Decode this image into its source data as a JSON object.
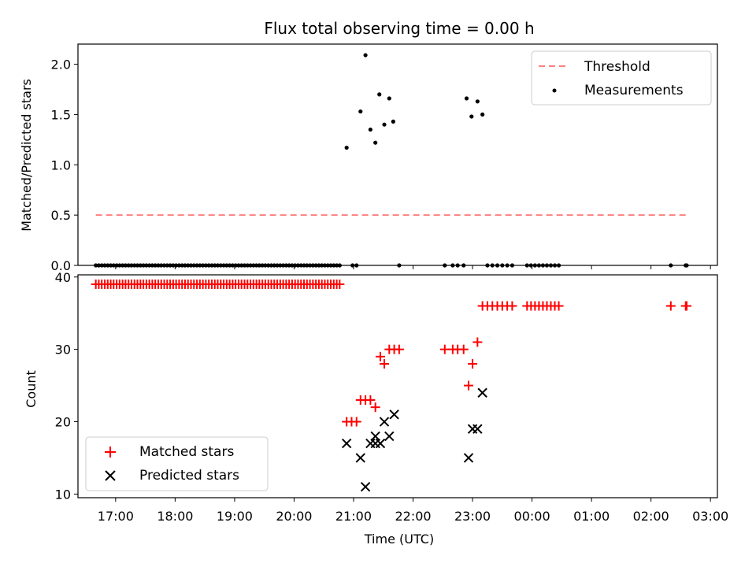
{
  "chart_data": [
    {
      "type": "scatter",
      "title": "Flux total observing time = 0.00 h",
      "xlabel": "",
      "ylabel": "Matched/Predicted stars",
      "xlim": [
        "16:22",
        "03:07"
      ],
      "ylim": [
        0,
        2.2
      ],
      "yticks": [
        0.0,
        0.5,
        1.0,
        1.5,
        2.0
      ],
      "ytick_labels": [
        "0.0",
        "0.5",
        "1.0",
        "1.5",
        "2.0"
      ],
      "legend_position": "upper right",
      "threshold": {
        "name": "Threshold",
        "value": 0.5,
        "x_start": "16:40",
        "x_end": "02:35",
        "color": "#ff8080"
      },
      "series": [
        {
          "name": "Measurements",
          "color": "#000000",
          "marker": "dot",
          "points": [
            [
              "16:40",
              0
            ],
            [
              "16:43",
              0
            ],
            [
              "16:46",
              0
            ],
            [
              "16:49",
              0
            ],
            [
              "16:52",
              0
            ],
            [
              "16:55",
              0
            ],
            [
              "16:58",
              0
            ],
            [
              "17:01",
              0
            ],
            [
              "17:04",
              0
            ],
            [
              "17:07",
              0
            ],
            [
              "17:10",
              0
            ],
            [
              "17:13",
              0
            ],
            [
              "17:16",
              0
            ],
            [
              "17:19",
              0
            ],
            [
              "17:22",
              0
            ],
            [
              "17:25",
              0
            ],
            [
              "17:28",
              0
            ],
            [
              "17:31",
              0
            ],
            [
              "17:34",
              0
            ],
            [
              "17:37",
              0
            ],
            [
              "17:40",
              0
            ],
            [
              "17:43",
              0
            ],
            [
              "17:46",
              0
            ],
            [
              "17:49",
              0
            ],
            [
              "17:52",
              0
            ],
            [
              "17:55",
              0
            ],
            [
              "17:58",
              0
            ],
            [
              "18:01",
              0
            ],
            [
              "18:04",
              0
            ],
            [
              "18:07",
              0
            ],
            [
              "18:10",
              0
            ],
            [
              "18:13",
              0
            ],
            [
              "18:16",
              0
            ],
            [
              "18:19",
              0
            ],
            [
              "18:22",
              0
            ],
            [
              "18:25",
              0
            ],
            [
              "18:28",
              0
            ],
            [
              "18:31",
              0
            ],
            [
              "18:34",
              0
            ],
            [
              "18:37",
              0
            ],
            [
              "18:40",
              0
            ],
            [
              "18:43",
              0
            ],
            [
              "18:46",
              0
            ],
            [
              "18:49",
              0
            ],
            [
              "18:52",
              0
            ],
            [
              "18:55",
              0
            ],
            [
              "18:58",
              0
            ],
            [
              "19:01",
              0
            ],
            [
              "19:04",
              0
            ],
            [
              "19:07",
              0
            ],
            [
              "19:10",
              0
            ],
            [
              "19:13",
              0
            ],
            [
              "19:16",
              0
            ],
            [
              "19:19",
              0
            ],
            [
              "19:22",
              0
            ],
            [
              "19:25",
              0
            ],
            [
              "19:28",
              0
            ],
            [
              "19:31",
              0
            ],
            [
              "19:34",
              0
            ],
            [
              "19:37",
              0
            ],
            [
              "19:40",
              0
            ],
            [
              "19:43",
              0
            ],
            [
              "19:46",
              0
            ],
            [
              "19:49",
              0
            ],
            [
              "19:52",
              0
            ],
            [
              "19:55",
              0
            ],
            [
              "19:58",
              0
            ],
            [
              "20:01",
              0
            ],
            [
              "20:04",
              0
            ],
            [
              "20:07",
              0
            ],
            [
              "20:10",
              0
            ],
            [
              "20:13",
              0
            ],
            [
              "20:16",
              0
            ],
            [
              "20:19",
              0
            ],
            [
              "20:22",
              0
            ],
            [
              "20:25",
              0
            ],
            [
              "20:28",
              0
            ],
            [
              "20:31",
              0
            ],
            [
              "20:34",
              0
            ],
            [
              "20:37",
              0
            ],
            [
              "20:40",
              0
            ],
            [
              "20:43",
              0
            ],
            [
              "20:46",
              0
            ],
            [
              "20:53",
              1.17
            ],
            [
              "20:59",
              0
            ],
            [
              "21:03",
              0
            ],
            [
              "21:07",
              1.53
            ],
            [
              "21:12",
              2.09
            ],
            [
              "21:17",
              1.35
            ],
            [
              "21:22",
              1.22
            ],
            [
              "21:26",
              1.7
            ],
            [
              "21:31",
              1.4
            ],
            [
              "21:36",
              1.66
            ],
            [
              "21:40",
              1.43
            ],
            [
              "21:46",
              0
            ],
            [
              "22:32",
              0
            ],
            [
              "22:40",
              0
            ],
            [
              "22:45",
              0
            ],
            [
              "22:51",
              0
            ],
            [
              "22:54",
              1.66
            ],
            [
              "22:59",
              1.48
            ],
            [
              "23:05",
              1.63
            ],
            [
              "23:10",
              1.5
            ],
            [
              "23:15",
              0
            ],
            [
              "23:20",
              0
            ],
            [
              "23:25",
              0
            ],
            [
              "23:30",
              0
            ],
            [
              "23:35",
              0
            ],
            [
              "23:40",
              0
            ],
            [
              "23:55",
              0
            ],
            [
              "23:59",
              0
            ],
            [
              "00:03",
              0
            ],
            [
              "00:07",
              0
            ],
            [
              "00:11",
              0
            ],
            [
              "00:15",
              0
            ],
            [
              "00:19",
              0
            ],
            [
              "00:23",
              0
            ],
            [
              "00:27",
              0
            ],
            [
              "02:20",
              0
            ],
            [
              "02:35",
              0
            ],
            [
              "02:36",
              0
            ]
          ]
        }
      ]
    },
    {
      "type": "scatter",
      "title": "",
      "xlabel": "Time (UTC)",
      "ylabel": "Count",
      "xlim": [
        "16:22",
        "03:07"
      ],
      "ylim": [
        9.5,
        40.3
      ],
      "yticks": [
        10,
        20,
        30,
        40
      ],
      "ytick_labels": [
        "10",
        "20",
        "30",
        "40"
      ],
      "xticks": [
        "17:00",
        "18:00",
        "19:00",
        "20:00",
        "21:00",
        "22:00",
        "23:00",
        "00:00",
        "01:00",
        "02:00",
        "03:00"
      ],
      "xtick_labels": [
        "17:00",
        "18:00",
        "19:00",
        "20:00",
        "21:00",
        "22:00",
        "23:00",
        "00:00",
        "01:00",
        "02:00",
        "03:00"
      ],
      "legend_position": "lower left",
      "series": [
        {
          "name": "Matched stars",
          "color": "#ff0000",
          "marker": "plus",
          "points": [
            [
              "16:40",
              39
            ],
            [
              "16:43",
              39
            ],
            [
              "16:46",
              39
            ],
            [
              "16:49",
              39
            ],
            [
              "16:52",
              39
            ],
            [
              "16:55",
              39
            ],
            [
              "16:58",
              39
            ],
            [
              "17:01",
              39
            ],
            [
              "17:04",
              39
            ],
            [
              "17:07",
              39
            ],
            [
              "17:10",
              39
            ],
            [
              "17:13",
              39
            ],
            [
              "17:16",
              39
            ],
            [
              "17:19",
              39
            ],
            [
              "17:22",
              39
            ],
            [
              "17:25",
              39
            ],
            [
              "17:28",
              39
            ],
            [
              "17:31",
              39
            ],
            [
              "17:34",
              39
            ],
            [
              "17:37",
              39
            ],
            [
              "17:40",
              39
            ],
            [
              "17:43",
              39
            ],
            [
              "17:46",
              39
            ],
            [
              "17:49",
              39
            ],
            [
              "17:52",
              39
            ],
            [
              "17:55",
              39
            ],
            [
              "17:58",
              39
            ],
            [
              "18:01",
              39
            ],
            [
              "18:04",
              39
            ],
            [
              "18:07",
              39
            ],
            [
              "18:10",
              39
            ],
            [
              "18:13",
              39
            ],
            [
              "18:16",
              39
            ],
            [
              "18:19",
              39
            ],
            [
              "18:22",
              39
            ],
            [
              "18:25",
              39
            ],
            [
              "18:28",
              39
            ],
            [
              "18:31",
              39
            ],
            [
              "18:34",
              39
            ],
            [
              "18:37",
              39
            ],
            [
              "18:40",
              39
            ],
            [
              "18:43",
              39
            ],
            [
              "18:46",
              39
            ],
            [
              "18:49",
              39
            ],
            [
              "18:52",
              39
            ],
            [
              "18:55",
              39
            ],
            [
              "18:58",
              39
            ],
            [
              "19:01",
              39
            ],
            [
              "19:04",
              39
            ],
            [
              "19:07",
              39
            ],
            [
              "19:10",
              39
            ],
            [
              "19:13",
              39
            ],
            [
              "19:16",
              39
            ],
            [
              "19:19",
              39
            ],
            [
              "19:22",
              39
            ],
            [
              "19:25",
              39
            ],
            [
              "19:28",
              39
            ],
            [
              "19:31",
              39
            ],
            [
              "19:34",
              39
            ],
            [
              "19:37",
              39
            ],
            [
              "19:40",
              39
            ],
            [
              "19:43",
              39
            ],
            [
              "19:46",
              39
            ],
            [
              "19:49",
              39
            ],
            [
              "19:52",
              39
            ],
            [
              "19:55",
              39
            ],
            [
              "19:58",
              39
            ],
            [
              "20:01",
              39
            ],
            [
              "20:04",
              39
            ],
            [
              "20:07",
              39
            ],
            [
              "20:10",
              39
            ],
            [
              "20:13",
              39
            ],
            [
              "20:16",
              39
            ],
            [
              "20:19",
              39
            ],
            [
              "20:22",
              39
            ],
            [
              "20:25",
              39
            ],
            [
              "20:28",
              39
            ],
            [
              "20:31",
              39
            ],
            [
              "20:34",
              39
            ],
            [
              "20:37",
              39
            ],
            [
              "20:40",
              39
            ],
            [
              "20:43",
              39
            ],
            [
              "20:46",
              39
            ],
            [
              "20:53",
              20
            ],
            [
              "20:58",
              20
            ],
            [
              "21:03",
              20
            ],
            [
              "21:07",
              23
            ],
            [
              "21:12",
              23
            ],
            [
              "21:17",
              23
            ],
            [
              "21:22",
              22
            ],
            [
              "21:27",
              29
            ],
            [
              "21:31",
              28
            ],
            [
              "21:36",
              30
            ],
            [
              "21:41",
              30
            ],
            [
              "21:46",
              30
            ],
            [
              "22:32",
              30
            ],
            [
              "22:40",
              30
            ],
            [
              "22:45",
              30
            ],
            [
              "22:51",
              30
            ],
            [
              "22:56",
              25
            ],
            [
              "23:00",
              28
            ],
            [
              "23:05",
              31
            ],
            [
              "23:10",
              36
            ],
            [
              "23:15",
              36
            ],
            [
              "23:20",
              36
            ],
            [
              "23:25",
              36
            ],
            [
              "23:30",
              36
            ],
            [
              "23:35",
              36
            ],
            [
              "23:40",
              36
            ],
            [
              "23:55",
              36
            ],
            [
              "23:59",
              36
            ],
            [
              "00:03",
              36
            ],
            [
              "00:07",
              36
            ],
            [
              "00:11",
              36
            ],
            [
              "00:15",
              36
            ],
            [
              "00:19",
              36
            ],
            [
              "00:23",
              36
            ],
            [
              "00:27",
              36
            ],
            [
              "02:20",
              36
            ],
            [
              "02:35",
              36
            ],
            [
              "02:36",
              36
            ]
          ]
        },
        {
          "name": "Predicted stars",
          "color": "#000000",
          "marker": "x",
          "points": [
            [
              "20:53",
              17
            ],
            [
              "21:07",
              15
            ],
            [
              "21:12",
              11
            ],
            [
              "21:17",
              17
            ],
            [
              "21:22",
              18
            ],
            [
              "21:22",
              17
            ],
            [
              "21:27",
              17
            ],
            [
              "21:31",
              20
            ],
            [
              "21:36",
              18
            ],
            [
              "21:41",
              21
            ],
            [
              "22:56",
              15
            ],
            [
              "23:00",
              19
            ],
            [
              "23:05",
              19
            ],
            [
              "23:10",
              24
            ]
          ]
        }
      ]
    }
  ]
}
